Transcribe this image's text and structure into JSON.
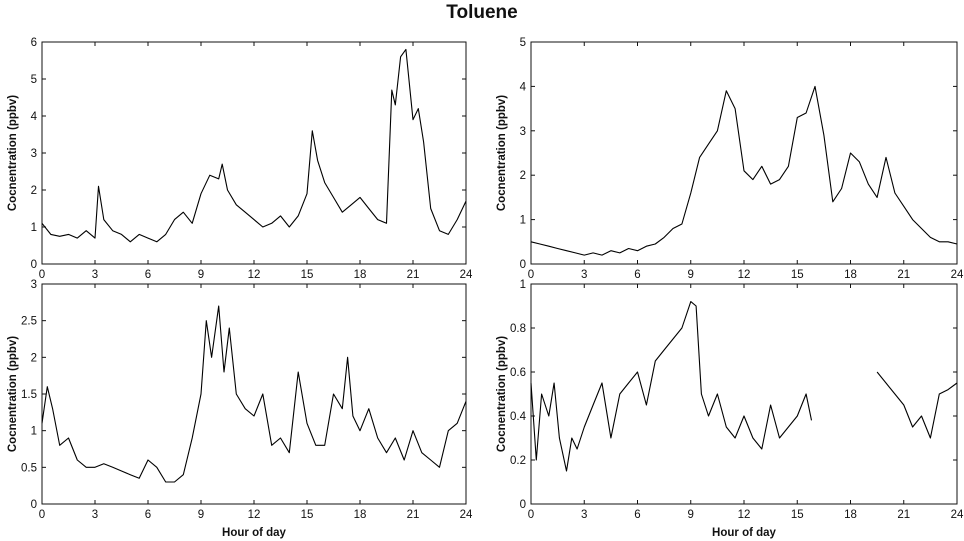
{
  "title": "Toluene",
  "chart_data": [
    {
      "type": "line",
      "xlabel": "",
      "ylabel": "Cocnentration (ppbv)",
      "xlim": [
        0,
        24
      ],
      "ylim": [
        0,
        6
      ],
      "xticks": [
        0,
        3,
        6,
        9,
        12,
        15,
        18,
        21,
        24
      ],
      "yticks": [
        0,
        1,
        2,
        3,
        4,
        5,
        6
      ],
      "grid": false,
      "x": [
        0,
        0.5,
        1,
        1.5,
        2,
        2.5,
        3,
        3.2,
        3.5,
        4,
        4.5,
        5,
        5.5,
        6,
        6.5,
        7,
        7.5,
        8,
        8.5,
        9,
        9.5,
        10,
        10.2,
        10.5,
        11,
        11.5,
        12,
        12.5,
        13,
        13.5,
        14,
        14.5,
        15,
        15.3,
        15.6,
        16,
        16.5,
        17,
        17.5,
        18,
        18.5,
        19,
        19.5,
        19.8,
        20,
        20.3,
        20.6,
        21,
        21.3,
        21.6,
        22,
        22.5,
        23,
        23.5,
        24
      ],
      "series": [
        {
          "values": [
            1.1,
            0.8,
            0.75,
            0.8,
            0.7,
            0.9,
            0.7,
            2.1,
            1.2,
            0.9,
            0.8,
            0.6,
            0.8,
            0.7,
            0.6,
            0.8,
            1.2,
            1.4,
            1.1,
            1.9,
            2.4,
            2.3,
            2.7,
            2.0,
            1.6,
            1.4,
            1.2,
            1.0,
            1.1,
            1.3,
            1.0,
            1.3,
            1.9,
            3.6,
            2.8,
            2.2,
            1.8,
            1.4,
            1.6,
            1.8,
            1.5,
            1.2,
            1.1,
            4.7,
            4.3,
            5.6,
            5.8,
            3.9,
            4.2,
            3.3,
            1.5,
            0.9,
            0.8,
            1.2,
            1.7
          ]
        }
      ]
    },
    {
      "type": "line",
      "xlabel": "",
      "ylabel": "Cocnentration (ppbv)",
      "xlim": [
        0,
        24
      ],
      "ylim": [
        0,
        5
      ],
      "xticks": [
        0,
        3,
        6,
        9,
        12,
        15,
        18,
        21,
        24
      ],
      "yticks": [
        0,
        1,
        2,
        3,
        4,
        5
      ],
      "grid": false,
      "x": [
        0,
        0.5,
        1,
        1.5,
        2,
        2.5,
        3,
        3.5,
        4,
        4.5,
        5,
        5.5,
        6,
        6.5,
        7,
        7.5,
        8,
        8.5,
        9,
        9.5,
        10,
        10.5,
        11,
        11.5,
        12,
        12.5,
        13,
        13.5,
        14,
        14.5,
        15,
        15.5,
        16,
        16.5,
        17,
        17.5,
        18,
        18.5,
        19,
        19.5,
        20,
        20.5,
        21,
        21.5,
        22,
        22.5,
        23,
        23.5,
        24
      ],
      "series": [
        {
          "values": [
            0.5,
            0.45,
            0.4,
            0.35,
            0.3,
            0.25,
            0.2,
            0.25,
            0.2,
            0.3,
            0.25,
            0.35,
            0.3,
            0.4,
            0.45,
            0.6,
            0.8,
            0.9,
            1.6,
            2.4,
            2.7,
            3.0,
            3.9,
            3.5,
            2.1,
            1.9,
            2.2,
            1.8,
            1.9,
            2.2,
            3.3,
            3.4,
            4.0,
            2.9,
            1.4,
            1.7,
            2.5,
            2.3,
            1.8,
            1.5,
            2.4,
            1.6,
            1.3,
            1.0,
            0.8,
            0.6,
            0.5,
            0.5,
            0.45
          ]
        }
      ]
    },
    {
      "type": "line",
      "xlabel": "Hour of day",
      "ylabel": "Cocnentration (ppbv)",
      "xlim": [
        0,
        24
      ],
      "ylim": [
        0,
        3
      ],
      "xticks": [
        0,
        3,
        6,
        9,
        12,
        15,
        18,
        21,
        24
      ],
      "yticks": [
        0,
        0.5,
        1,
        1.5,
        2,
        2.5,
        3
      ],
      "ytick_labels": [
        "0",
        "0.5",
        "1",
        "1.5",
        "2",
        "2.5",
        "3"
      ],
      "grid": false,
      "x": [
        0,
        0.3,
        0.6,
        1,
        1.5,
        2,
        2.5,
        3,
        3.5,
        4,
        4.5,
        5,
        5.5,
        6,
        6.5,
        7,
        7.5,
        8,
        8.5,
        9,
        9.3,
        9.6,
        10,
        10.3,
        10.6,
        11,
        11.5,
        12,
        12.5,
        13,
        13.5,
        14,
        14.5,
        15,
        15.5,
        16,
        16.5,
        17,
        17.3,
        17.6,
        18,
        18.5,
        19,
        19.5,
        20,
        20.5,
        21,
        21.5,
        22,
        22.5,
        23,
        23.5,
        24
      ],
      "series": [
        {
          "values": [
            1.1,
            1.6,
            1.3,
            0.8,
            0.9,
            0.6,
            0.5,
            0.5,
            0.55,
            0.5,
            0.45,
            0.4,
            0.35,
            0.6,
            0.5,
            0.3,
            0.3,
            0.4,
            0.9,
            1.5,
            2.5,
            2.0,
            2.7,
            1.8,
            2.4,
            1.5,
            1.3,
            1.2,
            1.5,
            0.8,
            0.9,
            0.7,
            1.8,
            1.1,
            0.8,
            0.8,
            1.5,
            1.3,
            2.0,
            1.2,
            1.0,
            1.3,
            0.9,
            0.7,
            0.9,
            0.6,
            1.0,
            0.7,
            0.6,
            0.5,
            1.0,
            1.1,
            1.4
          ]
        }
      ]
    },
    {
      "type": "line",
      "xlabel": "Hour of day",
      "ylabel": "Cocnentration (ppbv)",
      "xlim": [
        0,
        24
      ],
      "ylim": [
        0,
        1
      ],
      "xticks": [
        0,
        3,
        6,
        9,
        12,
        15,
        18,
        21,
        24
      ],
      "yticks": [
        0,
        0.2,
        0.4,
        0.6,
        0.8,
        1
      ],
      "ytick_labels": [
        "0",
        "0.2",
        "0.4",
        "0.6",
        "0.8",
        "1"
      ],
      "grid": false,
      "x": [
        0,
        0.3,
        0.6,
        1,
        1.3,
        1.6,
        2,
        2.3,
        2.6,
        3,
        3.5,
        4,
        4.5,
        5,
        5.5,
        6,
        6.5,
        7,
        7.5,
        8,
        8.5,
        9,
        9.3,
        9.6,
        10,
        10.5,
        11,
        11.5,
        12,
        12.5,
        13,
        13.5,
        14,
        14.5,
        15,
        15.5,
        15.8,
        19,
        19.5,
        20,
        20.5,
        21,
        21.5,
        22,
        22.5,
        23,
        23.5,
        24
      ],
      "series": [
        {
          "values": [
            0.55,
            0.2,
            0.5,
            0.4,
            0.55,
            0.3,
            0.15,
            0.3,
            0.25,
            0.35,
            0.45,
            0.55,
            0.3,
            0.5,
            0.55,
            0.6,
            0.45,
            0.65,
            0.7,
            0.75,
            0.8,
            0.92,
            0.9,
            0.5,
            0.4,
            0.5,
            0.35,
            0.3,
            0.4,
            0.3,
            0.25,
            0.45,
            0.3,
            0.35,
            0.4,
            0.5,
            0.38,
            null,
            0.6,
            0.55,
            0.5,
            0.45,
            0.35,
            0.4,
            0.3,
            0.5,
            0.52,
            0.55
          ]
        }
      ]
    }
  ]
}
